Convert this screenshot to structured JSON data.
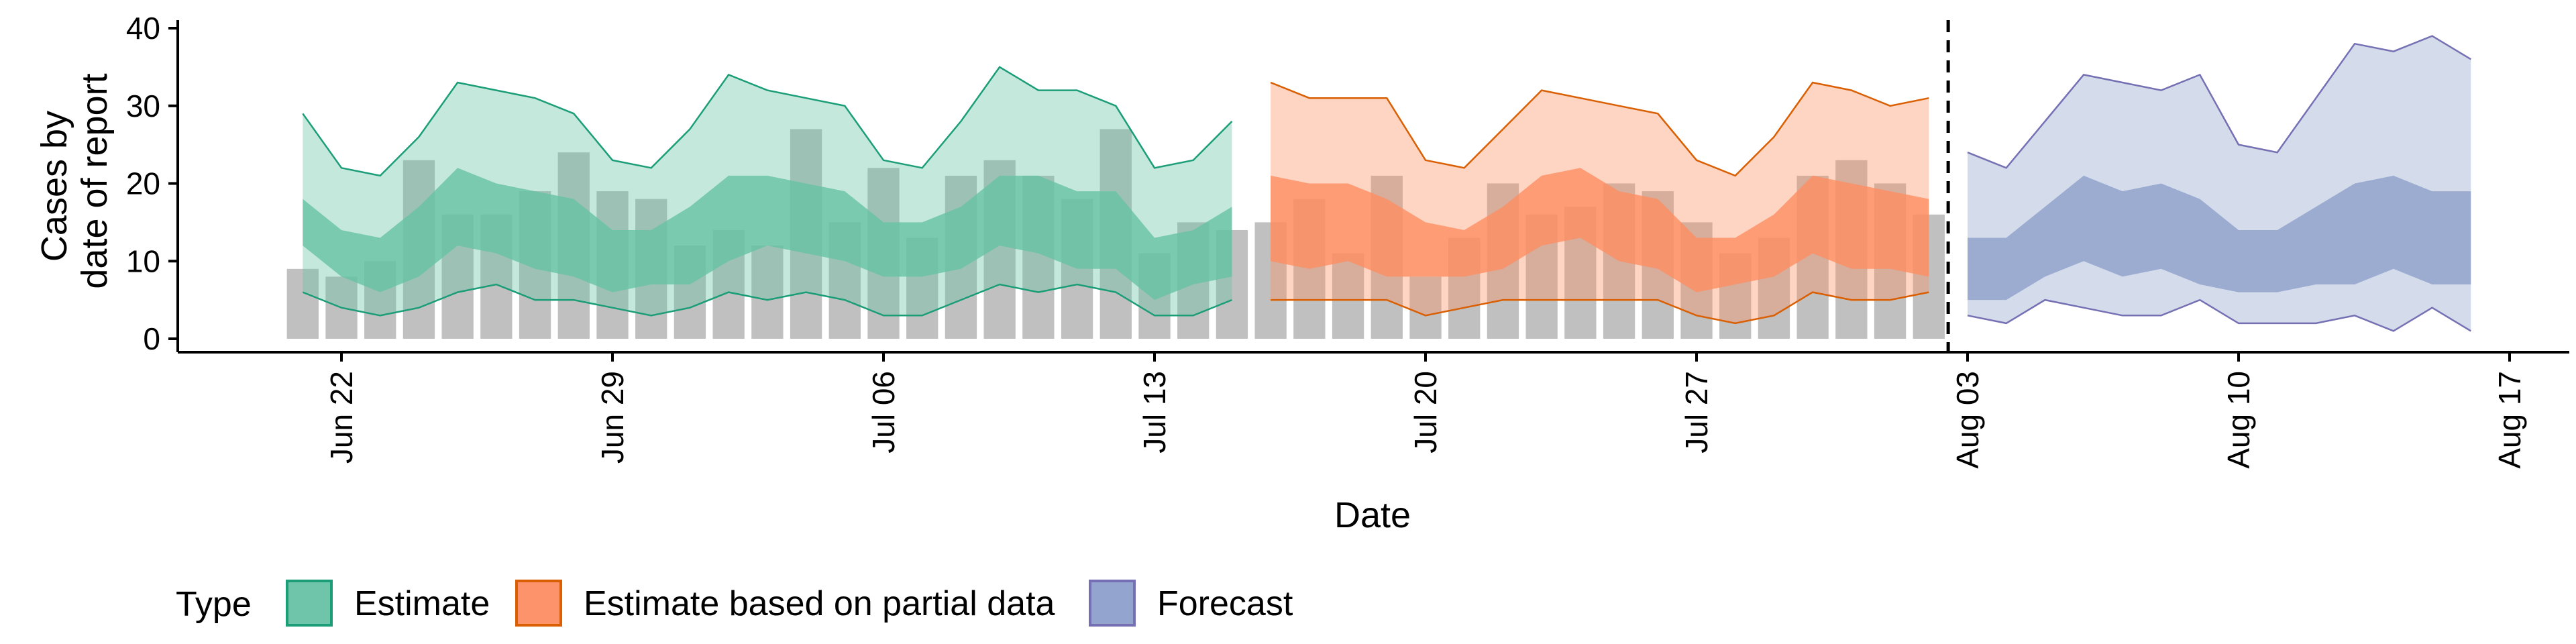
{
  "chart_data": {
    "type": "area",
    "xlabel": "Date",
    "ylabel": [
      "Cases by",
      "date of report"
    ],
    "ylim": [
      0,
      40
    ],
    "y_ticks": [
      0,
      10,
      20,
      30,
      40
    ],
    "x_domain": [
      "2020-06-20",
      "2020-08-17"
    ],
    "x_ticks": [
      {
        "date": "2020-06-22",
        "label": "Jun 22"
      },
      {
        "date": "2020-06-29",
        "label": "Jun 29"
      },
      {
        "date": "2020-07-06",
        "label": "Jul 06"
      },
      {
        "date": "2020-07-13",
        "label": "Jul 13"
      },
      {
        "date": "2020-07-20",
        "label": "Jul 20"
      },
      {
        "date": "2020-07-27",
        "label": "Jul 27"
      },
      {
        "date": "2020-08-03",
        "label": "Aug 03"
      },
      {
        "date": "2020-08-10",
        "label": "Aug 10"
      },
      {
        "date": "2020-08-17",
        "label": "Aug 17"
      }
    ],
    "vline_date": "2020-08-02",
    "grid": false,
    "legend_position": "bottom",
    "legend_title": "Type",
    "bars": {
      "start_date": "2020-06-21",
      "end_date": "2020-08-02",
      "color": "#bdbdbd",
      "values": [
        9,
        8,
        10,
        23,
        16,
        16,
        19,
        24,
        19,
        18,
        12,
        14,
        12,
        27,
        15,
        22,
        13,
        21,
        23,
        21,
        18,
        27,
        11,
        15,
        14,
        15,
        18,
        11,
        21,
        8,
        13,
        20,
        16,
        17,
        20,
        19,
        15,
        11,
        13,
        21,
        23,
        20,
        16
      ]
    },
    "series": [
      {
        "name": "Estimate",
        "fill": "#66c2a5",
        "line": "#1b9e77",
        "start_date": "2020-06-21",
        "end_date": "2020-07-15",
        "upper90": [
          29,
          22,
          21,
          26,
          33,
          32,
          31,
          29,
          23,
          22,
          27,
          34,
          32,
          31,
          30,
          23,
          22,
          28,
          35,
          32,
          32,
          30,
          22,
          23,
          28
        ],
        "upper50": [
          18,
          14,
          13,
          17,
          22,
          20,
          19,
          18,
          14,
          14,
          17,
          21,
          21,
          20,
          19,
          15,
          15,
          17,
          21,
          21,
          19,
          19,
          13,
          14,
          17
        ],
        "lower50": [
          12,
          8,
          6,
          8,
          12,
          11,
          9,
          8,
          6,
          7,
          7,
          10,
          12,
          11,
          10,
          8,
          8,
          9,
          12,
          11,
          9,
          9,
          5,
          7,
          8
        ],
        "lower90": [
          6,
          4,
          3,
          4,
          6,
          7,
          5,
          5,
          4,
          3,
          4,
          6,
          5,
          6,
          5,
          3,
          3,
          5,
          7,
          6,
          7,
          6,
          3,
          3,
          5
        ]
      },
      {
        "name": "Estimate based on partial data",
        "fill": "#fc8d62",
        "line": "#d95f02",
        "start_date": "2020-07-16",
        "end_date": "2020-08-02",
        "upper90": [
          33,
          31,
          31,
          31,
          23,
          22,
          27,
          32,
          31,
          30,
          29,
          23,
          21,
          26,
          33,
          32,
          30,
          31
        ],
        "upper50": [
          21,
          20,
          20,
          18,
          15,
          14,
          17,
          21,
          22,
          19,
          18,
          13,
          13,
          16,
          21,
          20,
          19,
          18
        ],
        "lower50": [
          10,
          9,
          10,
          8,
          8,
          8,
          9,
          12,
          13,
          10,
          9,
          6,
          7,
          8,
          11,
          9,
          9,
          8
        ],
        "lower90": [
          5,
          5,
          5,
          5,
          3,
          4,
          5,
          5,
          5,
          5,
          5,
          3,
          2,
          3,
          6,
          5,
          5,
          6
        ]
      },
      {
        "name": "Forecast",
        "fill": "#8da0cb",
        "line": "#7570b3",
        "start_date": "2020-08-03",
        "end_date": "2020-08-16",
        "upper90": [
          24,
          22,
          28,
          34,
          33,
          32,
          34,
          25,
          24,
          31,
          38,
          37,
          39,
          36
        ],
        "upper50": [
          13,
          13,
          17,
          21,
          19,
          20,
          18,
          14,
          14,
          17,
          20,
          21,
          19,
          19
        ],
        "lower50": [
          5,
          5,
          8,
          10,
          8,
          9,
          7,
          6,
          6,
          7,
          7,
          9,
          7,
          7
        ],
        "lower90": [
          3,
          2,
          5,
          4,
          3,
          3,
          5,
          2,
          2,
          2,
          3,
          1,
          4,
          1
        ]
      }
    ]
  }
}
